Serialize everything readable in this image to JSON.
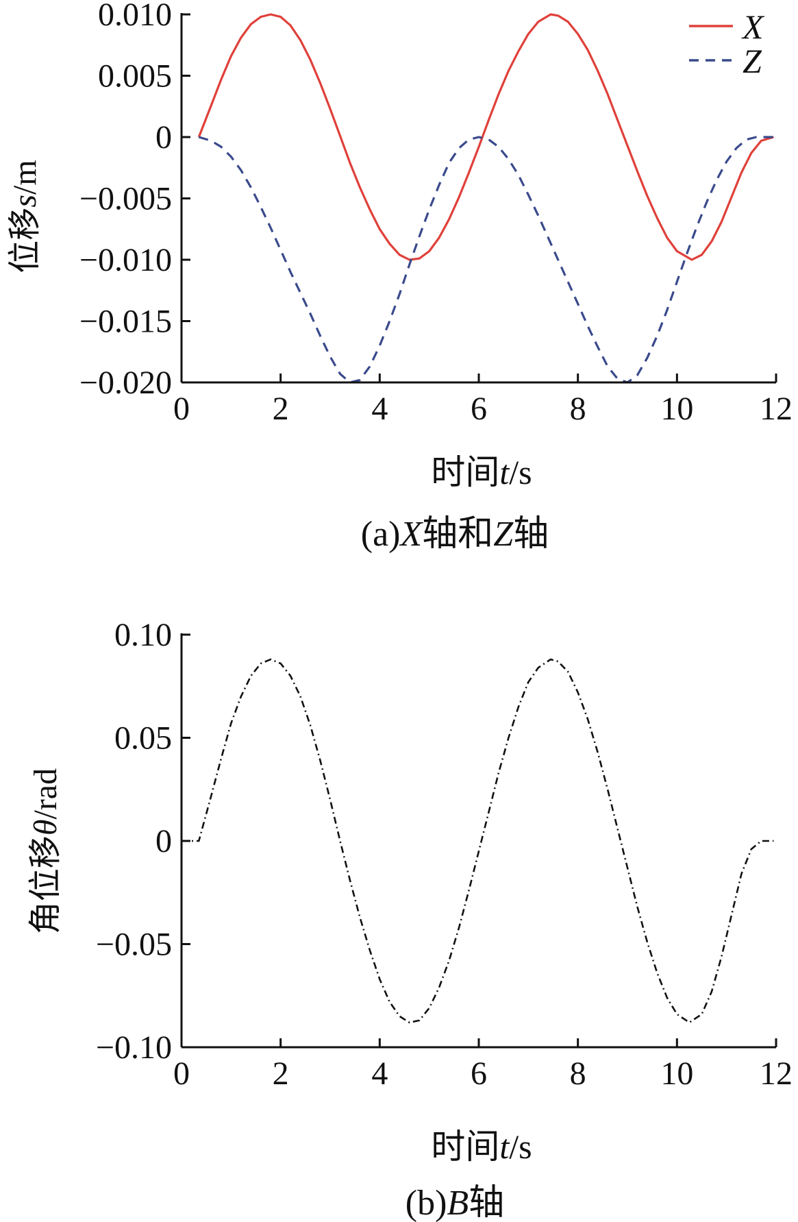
{
  "chart_data": [
    {
      "type": "line",
      "caption": "(a)X轴和Z轴",
      "caption_parts": {
        "prefix": "(a)",
        "var1": "X",
        "mid": "轴和",
        "var2": "Z",
        "suffix": "轴"
      },
      "xlabel": "时间t/s",
      "xlabel_parts": {
        "text": "时间",
        "var": "t",
        "unit": "/s"
      },
      "ylabel": "位移s/m",
      "ylabel_parts": {
        "text": "位移",
        "var": "s",
        "unit": "/m"
      },
      "xlim": [
        0,
        12
      ],
      "ylim": [
        -0.02,
        0.01
      ],
      "xticks": [
        0,
        2,
        4,
        6,
        8,
        10,
        12
      ],
      "xtick_labels": [
        "0",
        "2",
        "4",
        "6",
        "8",
        "10",
        "12"
      ],
      "yticks": [
        0.01,
        0.005,
        0,
        -0.005,
        -0.01,
        -0.015,
        -0.02
      ],
      "ytick_labels": [
        "0.010",
        "0.005",
        "0",
        "−0.005",
        "−0.010",
        "−0.015",
        "−0.020"
      ],
      "grid": false,
      "legend": "top-right",
      "series": [
        {
          "name": "X",
          "color": "#e0403a",
          "style": "solid",
          "x": [
            0.35,
            0.6,
            0.8,
            1.0,
            1.2,
            1.4,
            1.6,
            1.8,
            2.0,
            2.2,
            2.4,
            2.6,
            2.8,
            3.0,
            3.2,
            3.4,
            3.6,
            3.8,
            4.0,
            4.2,
            4.4,
            4.6,
            4.8,
            5.0,
            5.2,
            5.4,
            5.6,
            5.8,
            6.0,
            6.2,
            6.4,
            6.6,
            6.8,
            7.0,
            7.2,
            7.45,
            7.6,
            7.8,
            8.0,
            8.2,
            8.4,
            8.6,
            8.8,
            9.0,
            9.2,
            9.4,
            9.6,
            9.8,
            10.0,
            10.3,
            10.5,
            10.7,
            10.9,
            11.1,
            11.3,
            11.5,
            11.7,
            11.95
          ],
          "y": [
            0.0,
            0.0026,
            0.0047,
            0.0066,
            0.0081,
            0.0092,
            0.0098,
            0.01,
            0.0098,
            0.0091,
            0.0079,
            0.0063,
            0.0044,
            0.0023,
            0.0001,
            -0.0021,
            -0.0041,
            -0.0059,
            -0.0075,
            -0.0087,
            -0.0096,
            -0.01,
            -0.0099,
            -0.0093,
            -0.0082,
            -0.0067,
            -0.0049,
            -0.0029,
            -0.0008,
            0.0014,
            0.0035,
            0.0054,
            0.007,
            0.0084,
            0.0094,
            0.01,
            0.0099,
            0.0094,
            0.0084,
            0.0071,
            0.0054,
            0.0035,
            0.0014,
            -0.0007,
            -0.0028,
            -0.0048,
            -0.0066,
            -0.0082,
            -0.0093,
            -0.01,
            -0.0096,
            -0.0085,
            -0.0069,
            -0.0049,
            -0.0029,
            -0.0013,
            -0.0003,
            0.0
          ]
        },
        {
          "name": "Z",
          "color": "#3a4a8c",
          "style": "dashed",
          "x": [
            0.35,
            0.6,
            0.8,
            1.0,
            1.2,
            1.4,
            1.6,
            1.8,
            2.0,
            2.2,
            2.4,
            2.6,
            2.8,
            3.0,
            3.2,
            3.4,
            3.6,
            3.8,
            4.0,
            4.2,
            4.4,
            4.6,
            4.8,
            5.0,
            5.2,
            5.4,
            5.6,
            5.8,
            6.0,
            6.2,
            6.4,
            6.6,
            6.8,
            7.0,
            7.2,
            7.4,
            7.6,
            7.8,
            8.0,
            8.2,
            8.4,
            8.6,
            8.8,
            9.0,
            9.2,
            9.4,
            9.6,
            9.8,
            10.0,
            10.2,
            10.4,
            10.6,
            10.8,
            11.0,
            11.2,
            11.4,
            11.6,
            11.8,
            11.95
          ],
          "y": [
            0.0,
            -0.0003,
            -0.0008,
            -0.0016,
            -0.0027,
            -0.0041,
            -0.0057,
            -0.0074,
            -0.0092,
            -0.011,
            -0.0127,
            -0.0144,
            -0.0162,
            -0.0179,
            -0.0193,
            -0.02,
            -0.0198,
            -0.0187,
            -0.017,
            -0.015,
            -0.0128,
            -0.0104,
            -0.0081,
            -0.0059,
            -0.0039,
            -0.0021,
            -0.0009,
            -0.0002,
            0.0,
            -0.0002,
            -0.0008,
            -0.0018,
            -0.0031,
            -0.0047,
            -0.0064,
            -0.0082,
            -0.01,
            -0.0118,
            -0.0136,
            -0.0154,
            -0.0171,
            -0.0187,
            -0.0197,
            -0.02,
            -0.0194,
            -0.018,
            -0.0162,
            -0.0141,
            -0.0118,
            -0.0095,
            -0.0073,
            -0.0053,
            -0.0035,
            -0.002,
            -0.0009,
            -0.0002,
            0.0,
            0.0,
            0.0
          ]
        }
      ]
    },
    {
      "type": "line",
      "caption": "(b)B轴",
      "caption_parts": {
        "prefix": "(b)",
        "var1": "B",
        "suffix": "轴"
      },
      "xlabel": "时间t/s",
      "xlabel_parts": {
        "text": "时间",
        "var": "t",
        "unit": "/s"
      },
      "ylabel": "角位移θ/rad",
      "ylabel_parts": {
        "text": "角位移",
        "var": "θ",
        "unit": "/rad"
      },
      "xlim": [
        0,
        12
      ],
      "ylim": [
        -0.1,
        0.1
      ],
      "xticks": [
        0,
        2,
        4,
        6,
        8,
        10,
        12
      ],
      "xtick_labels": [
        "0",
        "2",
        "4",
        "6",
        "8",
        "10",
        "12"
      ],
      "yticks": [
        0.1,
        0.05,
        0,
        -0.05,
        -0.1
      ],
      "ytick_labels": [
        "0.10",
        "0.05",
        "0",
        "−0.05",
        "−0.10"
      ],
      "grid": false,
      "legend": "none",
      "series": [
        {
          "name": "",
          "color": "#111111",
          "style": "dashdot",
          "x": [
            0.0,
            0.35,
            0.6,
            0.8,
            1.0,
            1.2,
            1.4,
            1.6,
            1.8,
            2.0,
            2.2,
            2.4,
            2.6,
            2.8,
            3.0,
            3.2,
            3.4,
            3.6,
            3.8,
            4.0,
            4.2,
            4.4,
            4.6,
            4.8,
            5.0,
            5.2,
            5.4,
            5.6,
            5.8,
            6.0,
            6.2,
            6.4,
            6.6,
            6.8,
            7.0,
            7.2,
            7.45,
            7.6,
            7.8,
            8.0,
            8.2,
            8.4,
            8.6,
            8.8,
            9.0,
            9.2,
            9.4,
            9.6,
            9.8,
            10.0,
            10.25,
            10.5,
            10.7,
            10.9,
            11.1,
            11.3,
            11.5,
            11.7,
            11.95
          ],
          "y": [
            0.0,
            0.0,
            0.022,
            0.04,
            0.057,
            0.07,
            0.08,
            0.086,
            0.088,
            0.086,
            0.08,
            0.07,
            0.056,
            0.039,
            0.02,
            0.0,
            -0.019,
            -0.037,
            -0.053,
            -0.067,
            -0.078,
            -0.085,
            -0.088,
            -0.087,
            -0.081,
            -0.071,
            -0.058,
            -0.042,
            -0.024,
            -0.005,
            0.014,
            0.033,
            0.05,
            0.065,
            0.077,
            0.084,
            0.088,
            0.087,
            0.082,
            0.072,
            0.059,
            0.043,
            0.025,
            0.006,
            -0.013,
            -0.032,
            -0.049,
            -0.064,
            -0.076,
            -0.084,
            -0.088,
            -0.084,
            -0.073,
            -0.056,
            -0.036,
            -0.016,
            -0.004,
            0.0,
            0.0
          ]
        }
      ]
    }
  ]
}
